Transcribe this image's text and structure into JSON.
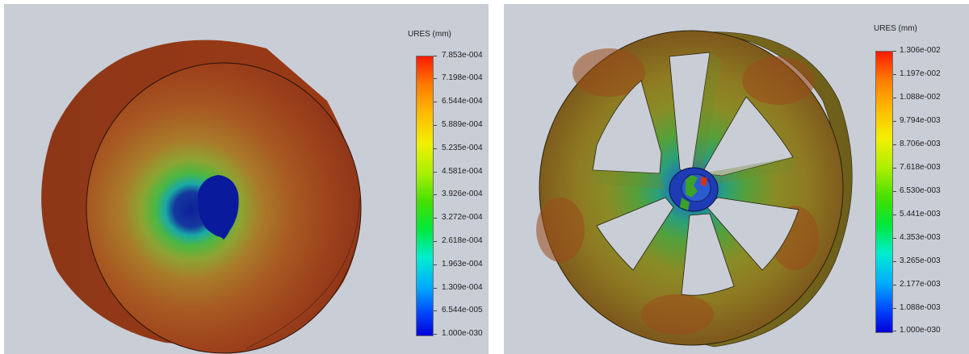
{
  "left_view": {
    "legend": {
      "title": "URES (mm)",
      "values": [
        "7.853e-004",
        "7.198e-004",
        "6.544e-004",
        "5.889e-004",
        "5.235e-004",
        "4.581e-004",
        "3.926e-004",
        "3.272e-004",
        "2.618e-004",
        "1.963e-004",
        "1.309e-004",
        "6.544e-005",
        "1.000e-030"
      ]
    }
  },
  "right_view": {
    "legend": {
      "title": "URES (mm)",
      "values": [
        "1.306e-002",
        "1.197e-002",
        "1.088e-002",
        "9.794e-003",
        "8.706e-003",
        "7.618e-003",
        "6.530e-003",
        "5.441e-003",
        "4.353e-003",
        "3.265e-003",
        "2.177e-003",
        "1.088e-003",
        "1.000e-030"
      ]
    }
  },
  "colors": {
    "viewport_background": "#c9cdd6",
    "max_displacement": "#ff1a00",
    "min_displacement": "#0000d8"
  }
}
